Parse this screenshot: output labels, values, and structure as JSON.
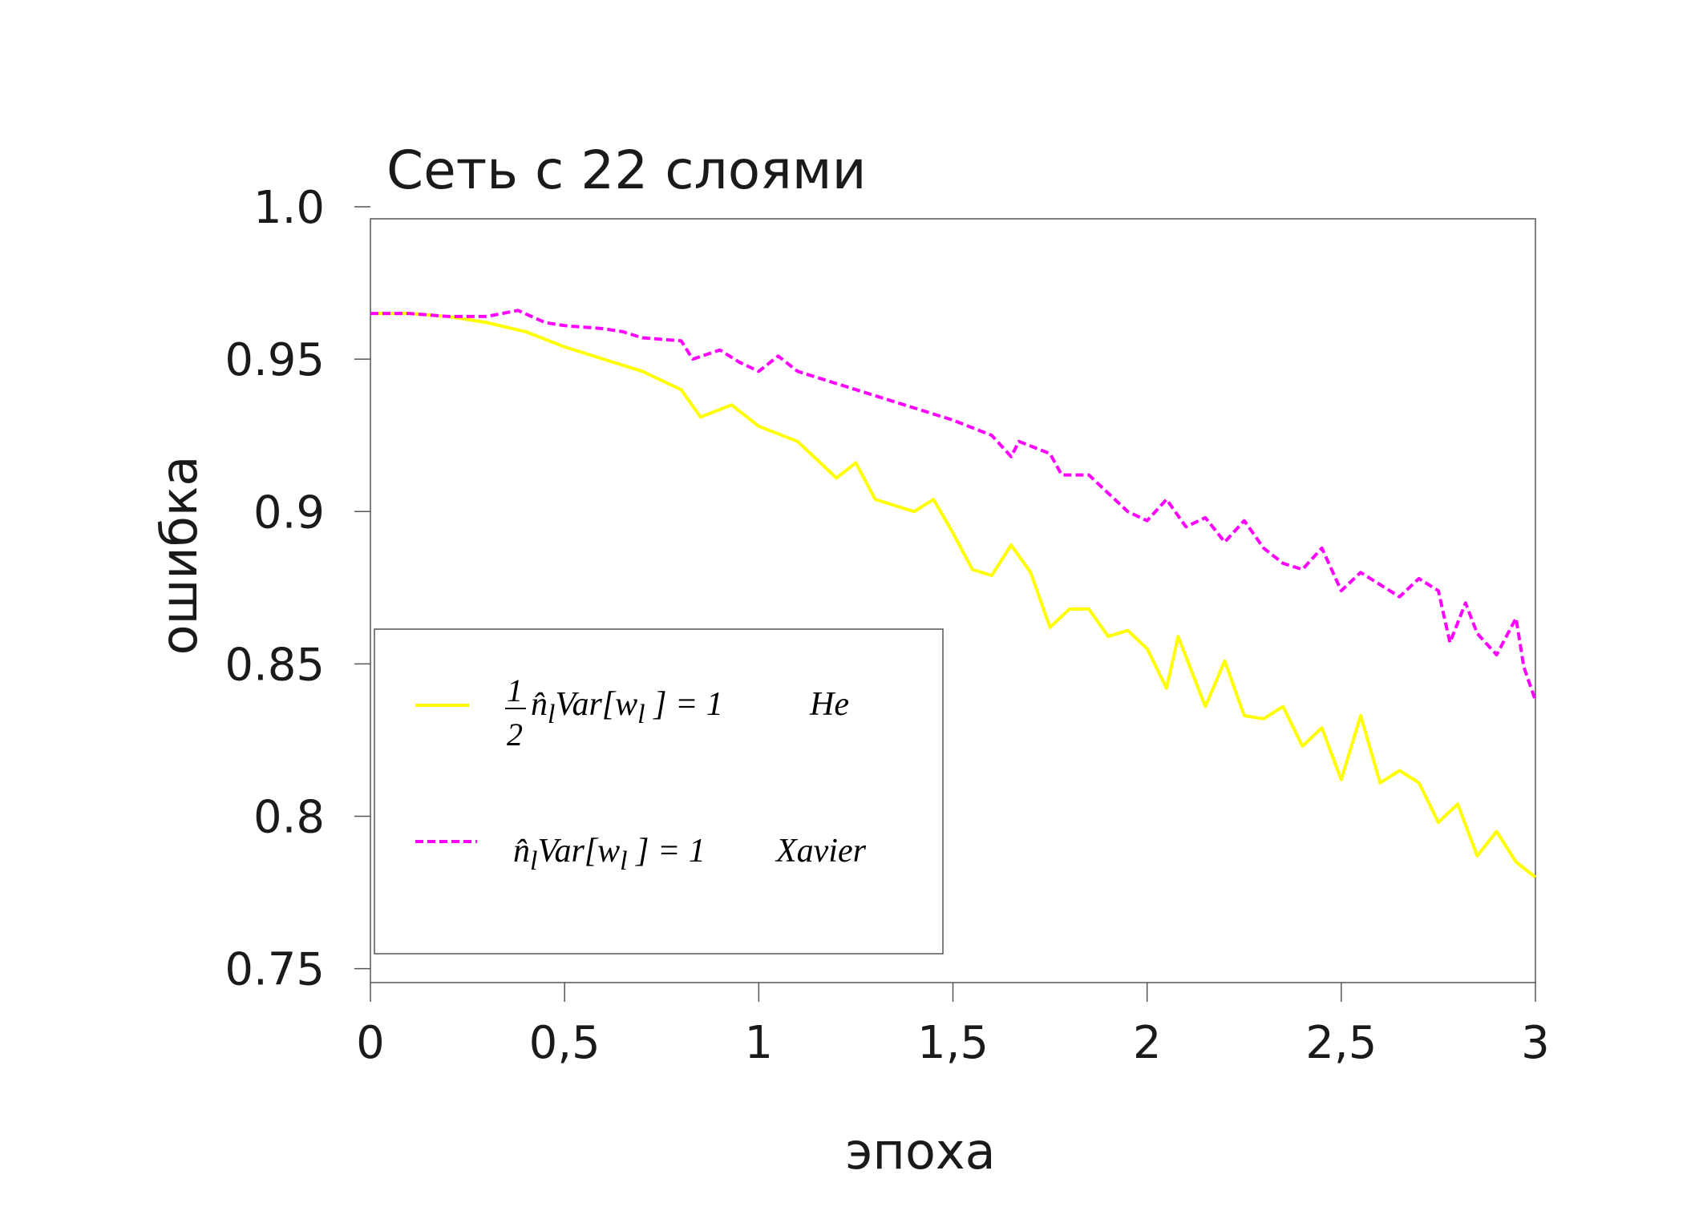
{
  "chart_data": {
    "type": "line",
    "title": "Сеть с 22 слоями",
    "xlabel": "эпоха",
    "ylabel": "ошибка",
    "xlim": [
      0,
      3
    ],
    "ylim": [
      0.75,
      1.0
    ],
    "grid": false,
    "legend_position": "bottom-left",
    "x_ticks": [
      0,
      0.5,
      1,
      1.5,
      2,
      2.5,
      3
    ],
    "x_tick_labels": [
      "0",
      "0,5",
      "1",
      "1,5",
      "2",
      "2,5",
      "3"
    ],
    "y_ticks": [
      1.0,
      0.95,
      0.9,
      0.85,
      0.8,
      0.75
    ],
    "y_tick_labels": [
      "1.0",
      "0.95",
      "0.9",
      "0.85",
      "0.8",
      "0.75"
    ],
    "series": [
      {
        "name": "He",
        "legend": {
          "frac_num": "1",
          "frac_den": "2",
          "n": "n̂",
          "sub": "l",
          "var": "Var[w",
          "sub2": "l",
          "tail": " ] = 1",
          "method": "He"
        },
        "color": "#ffff00",
        "style": "solid",
        "x": [
          0,
          0.1,
          0.2,
          0.3,
          0.4,
          0.5,
          0.6,
          0.7,
          0.8,
          0.85,
          0.93,
          1.0,
          1.1,
          1.2,
          1.25,
          1.3,
          1.4,
          1.45,
          1.5,
          1.55,
          1.6,
          1.65,
          1.7,
          1.75,
          1.8,
          1.85,
          1.9,
          1.95,
          2.0,
          2.05,
          2.08,
          2.15,
          2.2,
          2.25,
          2.3,
          2.35,
          2.4,
          2.45,
          2.5,
          2.55,
          2.6,
          2.65,
          2.7,
          2.75,
          2.8,
          2.85,
          2.9,
          2.95,
          3.0
        ],
        "y": [
          0.965,
          0.965,
          0.964,
          0.962,
          0.959,
          0.954,
          0.95,
          0.946,
          0.94,
          0.931,
          0.935,
          0.928,
          0.923,
          0.911,
          0.916,
          0.904,
          0.9,
          0.904,
          0.893,
          0.881,
          0.879,
          0.889,
          0.88,
          0.862,
          0.868,
          0.868,
          0.859,
          0.861,
          0.855,
          0.842,
          0.859,
          0.836,
          0.851,
          0.833,
          0.832,
          0.836,
          0.823,
          0.829,
          0.812,
          0.833,
          0.811,
          0.815,
          0.811,
          0.798,
          0.804,
          0.787,
          0.795,
          0.785,
          0.78
        ]
      },
      {
        "name": "Xavier",
        "legend": {
          "n": "n̂",
          "sub": "l",
          "var": "Var[w",
          "sub2": "l",
          "tail": " ] = 1",
          "method": "Xavier"
        },
        "color": "#ff00ff",
        "style": "dashed",
        "x": [
          0,
          0.1,
          0.2,
          0.3,
          0.38,
          0.45,
          0.5,
          0.6,
          0.65,
          0.7,
          0.8,
          0.83,
          0.9,
          0.95,
          1.0,
          1.05,
          1.1,
          1.2,
          1.3,
          1.35,
          1.4,
          1.5,
          1.6,
          1.65,
          1.67,
          1.75,
          1.78,
          1.85,
          1.9,
          1.95,
          2.0,
          2.05,
          2.1,
          2.15,
          2.2,
          2.25,
          2.3,
          2.35,
          2.4,
          2.45,
          2.5,
          2.55,
          2.6,
          2.65,
          2.7,
          2.75,
          2.78,
          2.82,
          2.85,
          2.9,
          2.95,
          2.97,
          3.0
        ],
        "y": [
          0.965,
          0.965,
          0.964,
          0.964,
          0.966,
          0.962,
          0.961,
          0.96,
          0.959,
          0.957,
          0.956,
          0.95,
          0.953,
          0.949,
          0.946,
          0.951,
          0.946,
          0.942,
          0.938,
          0.936,
          0.934,
          0.93,
          0.925,
          0.918,
          0.923,
          0.919,
          0.912,
          0.912,
          0.906,
          0.9,
          0.897,
          0.904,
          0.895,
          0.898,
          0.89,
          0.897,
          0.888,
          0.883,
          0.881,
          0.888,
          0.874,
          0.88,
          0.876,
          0.872,
          0.878,
          0.874,
          0.857,
          0.87,
          0.86,
          0.853,
          0.865,
          0.849,
          0.838
        ]
      }
    ]
  }
}
